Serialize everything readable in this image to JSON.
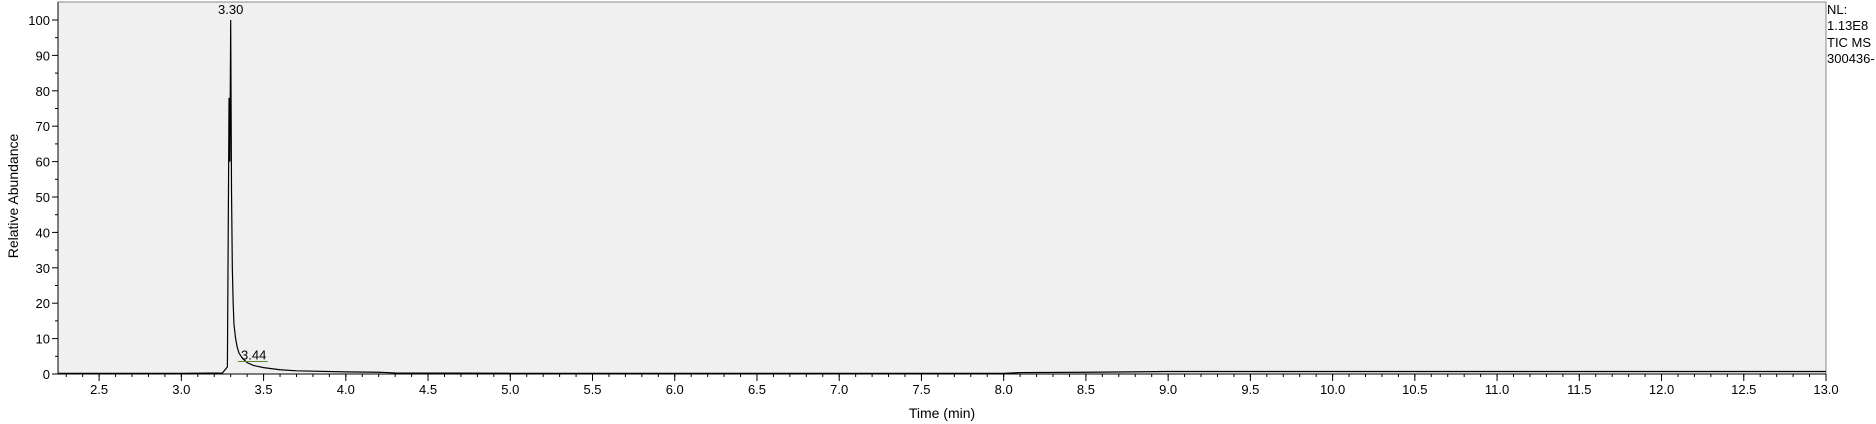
{
  "chart_data": {
    "type": "line",
    "xlabel": "Time (min)",
    "ylabel": "Relative Abundance",
    "xlim": [
      2.25,
      13.0
    ],
    "ylim": [
      0,
      100
    ],
    "x_ticks": [
      "2.5",
      "3.0",
      "3.5",
      "4.0",
      "4.5",
      "5.0",
      "5.5",
      "6.0",
      "6.5",
      "7.0",
      "7.5",
      "8.0",
      "8.5",
      "9.0",
      "9.5",
      "10.0",
      "10.5",
      "11.0",
      "11.5",
      "12.0",
      "12.5",
      "13.0"
    ],
    "y_ticks": [
      "0",
      "10",
      "20",
      "30",
      "40",
      "50",
      "60",
      "70",
      "80",
      "90",
      "100"
    ],
    "series": [
      {
        "x": [
          2.25,
          3.0,
          3.25,
          3.28,
          3.29,
          3.295,
          3.3,
          3.305,
          3.31,
          3.315,
          3.32,
          3.33,
          3.34,
          3.35,
          3.37,
          3.4,
          3.44,
          3.5,
          3.6,
          3.7,
          4.0,
          4.2,
          4.3,
          5.0,
          6.0,
          7.0,
          8.0,
          8.1,
          8.5,
          9.0,
          10.0,
          11.0,
          12.0,
          13.0
        ],
        "y": [
          0.2,
          0.2,
          0.3,
          2,
          78,
          60,
          100,
          52,
          30,
          20,
          14,
          10,
          7.5,
          6,
          4.5,
          3.2,
          2.4,
          1.8,
          1.2,
          0.9,
          0.6,
          0.5,
          0.3,
          0.2,
          0.2,
          0.2,
          0.2,
          0.4,
          0.5,
          0.7,
          0.7,
          0.7,
          0.7,
          0.7
        ]
      }
    ],
    "peak_labels": [
      {
        "text": "3.30",
        "x": 3.3,
        "y": 100
      },
      {
        "text": "3.44",
        "x": 3.44,
        "y": 2.4
      }
    ],
    "info_lines": [
      "NL:",
      "1.13E8",
      "TIC  MS",
      "300436-"
    ],
    "colors": {
      "trace": "#000000",
      "plot_background": "#f0f0f0",
      "axis": "#000000",
      "annotation_marker": "#5a8a3a"
    }
  }
}
